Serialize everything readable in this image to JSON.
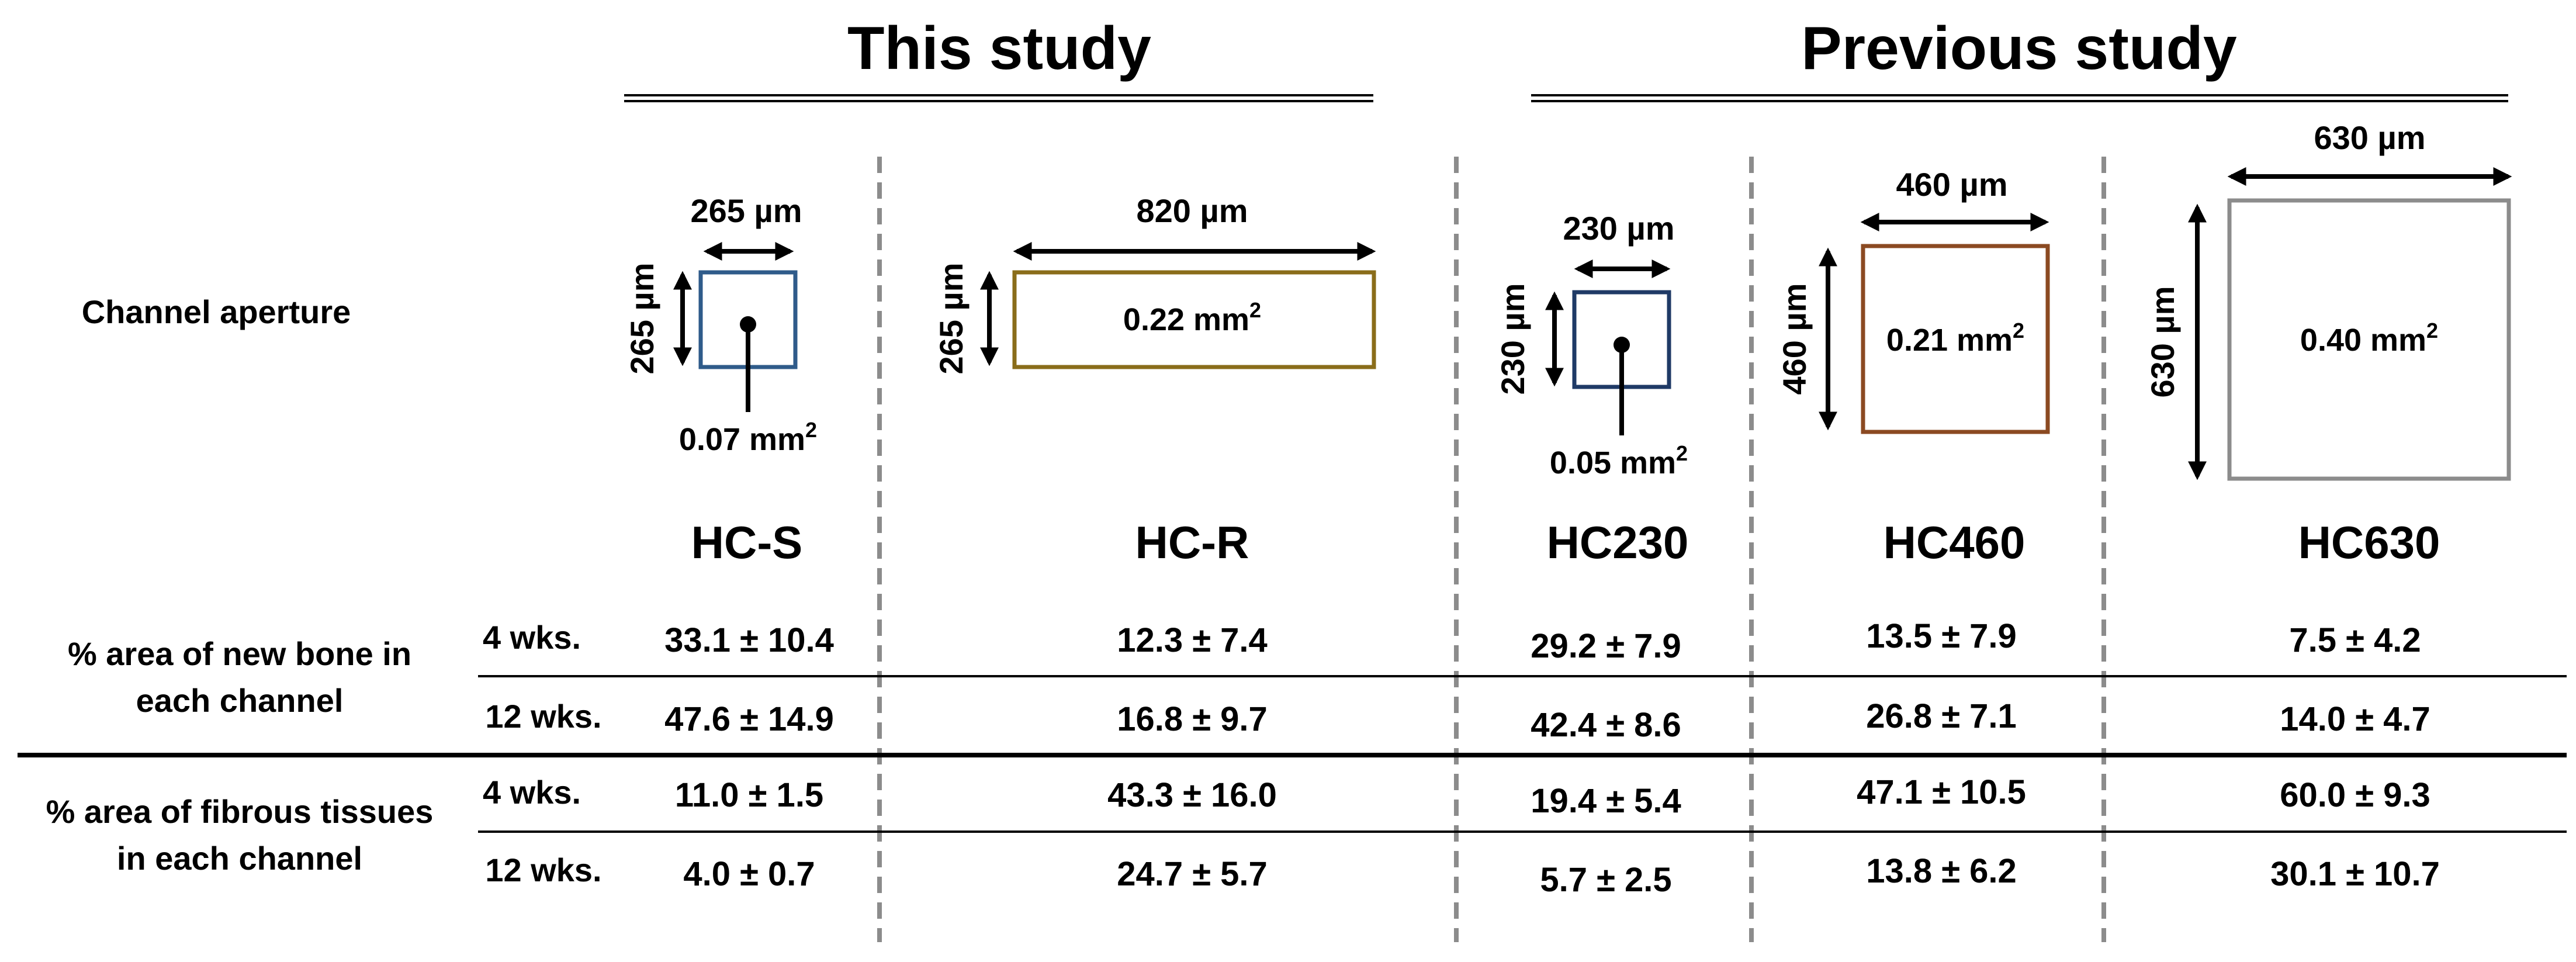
{
  "sections": {
    "this_study": "This study",
    "previous_study": "Previous study"
  },
  "labels": {
    "channel_aperture": "Channel aperture",
    "new_bone_line1": "% area of new bone in",
    "new_bone_line2": "each channel",
    "fibrous_line1": "% area of fibrous tissues",
    "fibrous_line2": "in each channel",
    "week4": "4 wks.",
    "week12": "12 wks."
  },
  "models": [
    {
      "name": "HC-S",
      "width": "265 µm",
      "height": "265 µm",
      "area": "0.07 mm",
      "color": "#2f5b8a",
      "new_bone": [
        "33.1 ± 10.4",
        "47.6 ± 14.9"
      ],
      "fibrous": [
        "11.0 ± 1.5",
        "4.0 ± 0.7"
      ]
    },
    {
      "name": "HC-R",
      "width": "820 µm",
      "height": "265 µm",
      "area": "0.22 mm",
      "color": "#8a6d1a",
      "new_bone": [
        "12.3 ± 7.4",
        "16.8 ± 9.7"
      ],
      "fibrous": [
        "43.3 ± 16.0",
        "24.7 ± 5.7"
      ]
    },
    {
      "name": "HC230",
      "width": "230 µm",
      "height": "230 µm",
      "area": "0.05 mm",
      "color": "#1f3a66",
      "new_bone": [
        "29.2 ± 7.9",
        "42.4 ± 8.6"
      ],
      "fibrous": [
        "19.4 ± 5.4",
        "5.7 ± 2.5"
      ]
    },
    {
      "name": "HC460",
      "width": "460 µm",
      "height": "460 µm",
      "area": "0.21 mm",
      "color": "#8b4a22",
      "new_bone": [
        "13.5 ± 7.9",
        "26.8 ± 7.1"
      ],
      "fibrous": [
        "47.1 ± 10.5",
        "13.8 ± 6.2"
      ]
    },
    {
      "name": "HC630",
      "width": "630 µm",
      "height": "630 µm",
      "area": "0.40 mm",
      "color": "#8c8c8c",
      "new_bone": [
        "7.5 ± 4.2",
        "14.0 ± 4.7"
      ],
      "fibrous": [
        "60.0 ± 9.3",
        "30.1 ± 10.7"
      ]
    }
  ],
  "superscript": "2"
}
